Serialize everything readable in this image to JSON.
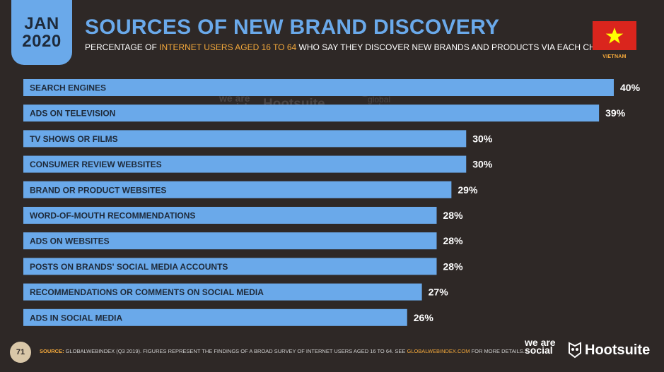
{
  "header": {
    "month": "JAN",
    "year": "2020",
    "title": "SOURCES OF NEW BRAND DISCOVERY",
    "subtitle_pre": "PERCENTAGE OF ",
    "subtitle_highlight": "INTERNET USERS AGED 16 TO 64",
    "subtitle_post": " WHO SAY THEY DISCOVER NEW BRANDS AND PRODUCTS VIA EACH CHANNEL",
    "country": "VIETNAM"
  },
  "watermark": {
    "brand1": "we are social",
    "brand2": "Hootsuite",
    "brand3": "global web index"
  },
  "footer": {
    "page_number": "71",
    "source_label": "SOURCE:",
    "source_text": " GLOBALWEBINDEX (Q3 2019). FIGURES REPRESENT THE FINDINGS OF A BROAD SURVEY OF INTERNET USERS AGED 16 TO 64. SEE ",
    "source_link": "GLOBALWEBINDEX.COM",
    "source_end": " FOR MORE DETAILS.",
    "logo1": "we are social",
    "logo2": "Hootsuite"
  },
  "colors": {
    "background": "#2e2826",
    "bar": "#6aa9ea",
    "accent": "#f3a83b",
    "flag": "#da251d",
    "star": "#ffff00"
  },
  "chart_data": {
    "type": "bar",
    "orientation": "horizontal",
    "categories": [
      "SEARCH ENGINES",
      "ADS ON TELEVISION",
      "TV SHOWS OR FILMS",
      "CONSUMER REVIEW WEBSITES",
      "BRAND OR PRODUCT WEBSITES",
      "WORD-OF-MOUTH RECOMMENDATIONS",
      "ADS ON WEBSITES",
      "POSTS ON BRANDS' SOCIAL MEDIA ACCOUNTS",
      "RECOMMENDATIONS OR COMMENTS ON SOCIAL MEDIA",
      "ADS IN SOCIAL MEDIA"
    ],
    "values": [
      40,
      39,
      30,
      30,
      29,
      28,
      28,
      28,
      27,
      26
    ],
    "value_labels": [
      "40%",
      "39%",
      "30%",
      "30%",
      "29%",
      "28%",
      "28%",
      "28%",
      "27%",
      "26%"
    ],
    "title": "SOURCES OF NEW BRAND DISCOVERY",
    "unit": "%",
    "xlim": [
      0,
      40
    ]
  }
}
